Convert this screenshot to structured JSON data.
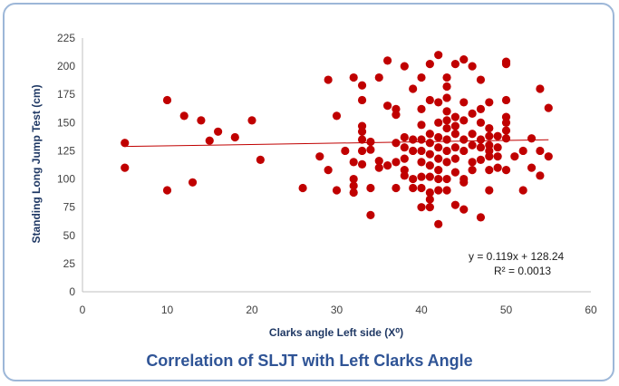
{
  "caption": "Correlation of SLJT with Left Clarks Angle",
  "chart_data": {
    "type": "scatter",
    "xlabel": "Clarks angle Left side (X⁰)",
    "ylabel": "Standing Long Jump Test (cm)",
    "xlim": [
      0,
      60
    ],
    "ylim": [
      0,
      225
    ],
    "xticks": [
      "0",
      "10",
      "20",
      "30",
      "40",
      "50",
      "60"
    ],
    "yticks": [
      "0",
      "25",
      "50",
      "75",
      "100",
      "125",
      "150",
      "175",
      "200",
      "225"
    ],
    "grid": false,
    "marker_color": "#c00000",
    "trendline": {
      "slope": 0.119,
      "intercept": 128.24,
      "x_range": [
        5,
        55
      ],
      "color": "#c00000"
    },
    "equation": "y = 0.119x + 128.24",
    "r_squared": "R² = 0.0013",
    "points": [
      [
        5,
        132
      ],
      [
        5,
        110
      ],
      [
        10,
        170
      ],
      [
        10,
        90
      ],
      [
        12,
        156
      ],
      [
        13,
        97
      ],
      [
        14,
        152
      ],
      [
        15,
        134
      ],
      [
        16,
        142
      ],
      [
        18,
        137
      ],
      [
        20,
        152
      ],
      [
        21,
        117
      ],
      [
        26,
        92
      ],
      [
        28,
        120
      ],
      [
        29,
        188
      ],
      [
        29,
        108
      ],
      [
        30,
        156
      ],
      [
        30,
        90
      ],
      [
        31,
        125
      ],
      [
        32,
        190
      ],
      [
        32,
        115
      ],
      [
        32,
        100
      ],
      [
        32,
        94
      ],
      [
        32,
        88
      ],
      [
        33,
        183
      ],
      [
        33,
        170
      ],
      [
        33,
        147
      ],
      [
        33,
        142
      ],
      [
        33,
        135
      ],
      [
        33,
        125
      ],
      [
        33,
        113
      ],
      [
        34,
        133
      ],
      [
        34,
        126
      ],
      [
        34,
        92
      ],
      [
        34,
        68
      ],
      [
        35,
        190
      ],
      [
        35,
        116
      ],
      [
        35,
        110
      ],
      [
        36,
        205
      ],
      [
        36,
        165
      ],
      [
        36,
        112
      ],
      [
        37,
        162
      ],
      [
        37,
        157
      ],
      [
        37,
        132
      ],
      [
        37,
        115
      ],
      [
        37,
        92
      ],
      [
        38,
        200
      ],
      [
        38,
        137
      ],
      [
        38,
        128
      ],
      [
        38,
        118
      ],
      [
        38,
        108
      ],
      [
        38,
        103
      ],
      [
        39,
        180
      ],
      [
        39,
        135
      ],
      [
        39,
        125
      ],
      [
        39,
        100
      ],
      [
        39,
        92
      ],
      [
        40,
        190
      ],
      [
        40,
        162
      ],
      [
        40,
        148
      ],
      [
        40,
        135
      ],
      [
        40,
        125
      ],
      [
        40,
        115
      ],
      [
        40,
        102
      ],
      [
        40,
        92
      ],
      [
        40,
        75
      ],
      [
        41,
        202
      ],
      [
        41,
        170
      ],
      [
        41,
        140
      ],
      [
        41,
        132
      ],
      [
        41,
        122
      ],
      [
        41,
        112
      ],
      [
        41,
        102
      ],
      [
        41,
        88
      ],
      [
        41,
        82
      ],
      [
        41,
        75
      ],
      [
        42,
        210
      ],
      [
        42,
        168
      ],
      [
        42,
        150
      ],
      [
        42,
        137
      ],
      [
        42,
        128
      ],
      [
        42,
        118
      ],
      [
        42,
        108
      ],
      [
        42,
        100
      ],
      [
        42,
        90
      ],
      [
        42,
        60
      ],
      [
        43,
        190
      ],
      [
        43,
        182
      ],
      [
        43,
        172
      ],
      [
        43,
        160
      ],
      [
        43,
        152
      ],
      [
        43,
        145
      ],
      [
        43,
        135
      ],
      [
        43,
        125
      ],
      [
        43,
        115
      ],
      [
        43,
        100
      ],
      [
        43,
        90
      ],
      [
        44,
        202
      ],
      [
        44,
        155
      ],
      [
        44,
        147
      ],
      [
        44,
        140
      ],
      [
        44,
        128
      ],
      [
        44,
        118
      ],
      [
        44,
        106
      ],
      [
        44,
        77
      ],
      [
        45,
        206
      ],
      [
        45,
        168
      ],
      [
        45,
        152
      ],
      [
        45,
        135
      ],
      [
        45,
        125
      ],
      [
        45,
        100
      ],
      [
        45,
        97
      ],
      [
        45,
        73
      ],
      [
        46,
        200
      ],
      [
        46,
        158
      ],
      [
        46,
        140
      ],
      [
        46,
        130
      ],
      [
        46,
        115
      ],
      [
        46,
        108
      ],
      [
        47,
        188
      ],
      [
        47,
        162
      ],
      [
        47,
        150
      ],
      [
        47,
        135
      ],
      [
        47,
        128
      ],
      [
        47,
        117
      ],
      [
        47,
        66
      ],
      [
        48,
        168
      ],
      [
        48,
        145
      ],
      [
        48,
        138
      ],
      [
        48,
        130
      ],
      [
        48,
        125
      ],
      [
        48,
        120
      ],
      [
        48,
        108
      ],
      [
        48,
        90
      ],
      [
        49,
        138
      ],
      [
        49,
        128
      ],
      [
        49,
        120
      ],
      [
        49,
        110
      ],
      [
        50,
        204
      ],
      [
        50,
        202
      ],
      [
        50,
        170
      ],
      [
        50,
        155
      ],
      [
        50,
        150
      ],
      [
        50,
        143
      ],
      [
        50,
        136
      ],
      [
        50,
        108
      ],
      [
        51,
        120
      ],
      [
        52,
        90
      ],
      [
        52,
        125
      ],
      [
        53,
        136
      ],
      [
        53,
        110
      ],
      [
        54,
        180
      ],
      [
        54,
        125
      ],
      [
        54,
        103
      ],
      [
        55,
        163
      ],
      [
        55,
        120
      ]
    ]
  }
}
